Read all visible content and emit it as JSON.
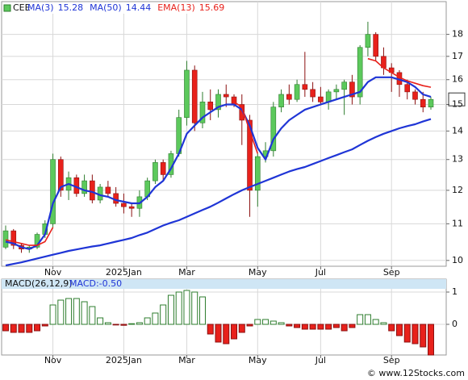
{
  "chart_data": [
    {
      "type": "candlestick",
      "title": "CEE",
      "log_scale": true,
      "grid": true,
      "ylim": [
        9.85,
        19.6
      ],
      "yticks": [
        10,
        11,
        12,
        13,
        14,
        15,
        16,
        17,
        18
      ],
      "up_color": "#5cc95c",
      "down_color": "#e8211b",
      "categories": [
        null,
        null,
        null,
        null,
        null,
        null,
        "Nov",
        null,
        null,
        null,
        null,
        null,
        null,
        null,
        null,
        "2025Jan",
        null,
        null,
        null,
        null,
        null,
        null,
        null,
        "Mar",
        null,
        null,
        null,
        null,
        null,
        null,
        null,
        null,
        "May",
        null,
        null,
        null,
        null,
        null,
        null,
        null,
        "Jul",
        null,
        null,
        null,
        null,
        null,
        null,
        null,
        null,
        "Sep",
        null,
        null,
        null,
        null,
        null
      ],
      "open": [
        10.35,
        10.8,
        10.4,
        10.3,
        10.35,
        10.7,
        11.0,
        13.0,
        12.0,
        12.4,
        11.9,
        12.3,
        11.7,
        12.1,
        11.9,
        11.6,
        11.5,
        11.45,
        11.8,
        12.3,
        12.9,
        12.5,
        13.2,
        14.5,
        16.4,
        14.3,
        15.1,
        14.8,
        15.4,
        15.3,
        15.0,
        14.4,
        12.0,
        13.1,
        13.3,
        14.9,
        15.4,
        15.2,
        15.8,
        15.6,
        15.3,
        15.1,
        15.5,
        15.6,
        15.9,
        15.3,
        17.4,
        18.0,
        17.0,
        16.5,
        16.3,
        15.8,
        15.5,
        15.2,
        14.9
      ],
      "high": [
        10.95,
        10.85,
        10.45,
        10.4,
        10.75,
        11.1,
        13.2,
        13.1,
        12.6,
        12.5,
        12.5,
        12.5,
        12.2,
        12.3,
        12.1,
        11.9,
        11.6,
        12.0,
        12.4,
        13.0,
        13.0,
        13.3,
        14.8,
        16.8,
        16.6,
        15.5,
        15.6,
        15.6,
        15.8,
        15.4,
        15.4,
        14.6,
        13.2,
        13.6,
        15.1,
        15.6,
        15.8,
        16.0,
        17.2,
        15.9,
        15.7,
        15.6,
        15.8,
        16.0,
        16.2,
        17.5,
        18.6,
        18.1,
        17.4,
        16.7,
        16.4,
        16.0,
        15.6,
        15.5,
        15.3
      ],
      "low": [
        10.3,
        10.3,
        10.2,
        10.2,
        10.3,
        10.6,
        10.9,
        11.8,
        11.7,
        11.8,
        11.8,
        11.6,
        11.6,
        11.8,
        11.5,
        11.3,
        11.2,
        11.2,
        11.7,
        12.2,
        12.3,
        12.4,
        13.1,
        14.2,
        14.0,
        14.1,
        14.4,
        14.5,
        14.9,
        14.9,
        13.5,
        11.2,
        11.5,
        12.9,
        13.1,
        14.7,
        15.0,
        15.1,
        15.3,
        15.1,
        15.0,
        14.8,
        15.2,
        14.6,
        15.0,
        15.0,
        17.0,
        16.8,
        16.2,
        15.5,
        15.3,
        15.2,
        15.0,
        14.7,
        14.8
      ],
      "close": [
        10.8,
        10.4,
        10.3,
        10.35,
        10.7,
        11.0,
        13.0,
        12.0,
        12.4,
        11.9,
        12.3,
        11.7,
        12.1,
        11.9,
        11.6,
        11.5,
        11.45,
        11.8,
        12.3,
        12.9,
        12.5,
        13.2,
        14.5,
        16.4,
        14.3,
        15.1,
        14.8,
        15.4,
        15.3,
        15.0,
        14.4,
        12.0,
        13.1,
        13.3,
        14.9,
        15.4,
        15.2,
        15.8,
        15.6,
        15.3,
        15.1,
        15.5,
        15.6,
        15.9,
        15.3,
        17.4,
        18.0,
        17.0,
        16.5,
        16.3,
        15.8,
        15.5,
        15.2,
        14.9,
        15.2
      ],
      "series": [
        {
          "name": "MA(3)",
          "color": "#1f35d6",
          "last": 15.28,
          "values": [
            10.5,
            10.45,
            10.35,
            10.3,
            10.4,
            10.7,
            11.6,
            12.1,
            12.2,
            12.1,
            12.0,
            11.95,
            11.85,
            11.8,
            11.7,
            11.65,
            11.6,
            11.6,
            11.8,
            12.1,
            12.3,
            12.7,
            13.2,
            13.9,
            14.2,
            14.5,
            14.7,
            14.9,
            15.0,
            15.0,
            14.8,
            14.2,
            13.4,
            13.0,
            13.7,
            14.1,
            14.4,
            14.6,
            14.8,
            14.9,
            15.0,
            15.1,
            15.2,
            15.3,
            15.4,
            15.5,
            15.9,
            16.1,
            16.1,
            16.1,
            16.0,
            15.9,
            15.7,
            15.4,
            15.3
          ]
        },
        {
          "name": "MA(50)",
          "color": "#1f35d6",
          "last": 14.44,
          "values": [
            9.87,
            9.91,
            9.95,
            10.0,
            10.05,
            10.1,
            10.15,
            10.2,
            10.25,
            10.29,
            10.33,
            10.37,
            10.4,
            10.45,
            10.5,
            10.55,
            10.6,
            10.68,
            10.75,
            10.85,
            10.95,
            11.03,
            11.1,
            11.2,
            11.3,
            11.4,
            11.5,
            11.62,
            11.75,
            11.88,
            12.0,
            12.1,
            12.2,
            12.3,
            12.4,
            12.5,
            12.6,
            12.68,
            12.75,
            12.85,
            12.95,
            13.05,
            13.15,
            13.25,
            13.35,
            13.5,
            13.65,
            13.78,
            13.9,
            14.0,
            14.1,
            14.18,
            14.25,
            14.35,
            14.44
          ]
        },
        {
          "name": "EMA(13)",
          "color": "#e8211b",
          "last": 15.69,
          "values": [
            10.55,
            10.5,
            10.45,
            10.4,
            10.4,
            10.5,
            10.9,
            null,
            null,
            null,
            null,
            null,
            null,
            null,
            null,
            null,
            null,
            null,
            null,
            null,
            null,
            null,
            null,
            null,
            null,
            null,
            null,
            null,
            null,
            15.1,
            14.9,
            14.0,
            13.2,
            null,
            null,
            null,
            null,
            null,
            null,
            null,
            null,
            null,
            null,
            null,
            null,
            null,
            16.9,
            16.8,
            16.5,
            16.3,
            16.1,
            15.95,
            15.85,
            15.75,
            15.69
          ]
        }
      ]
    },
    {
      "type": "bar",
      "title": "MACD(26,12,9)",
      "subtitle": "MACD:-0.50",
      "grid": true,
      "ylim": [
        -0.95,
        1.4
      ],
      "yticks": [
        1,
        0
      ],
      "up_color": "#2e7d2e",
      "down_color": "#e8211b",
      "categories": [
        null,
        null,
        null,
        null,
        null,
        null,
        "Nov",
        null,
        null,
        null,
        null,
        null,
        null,
        null,
        null,
        "2025Jan",
        null,
        null,
        null,
        null,
        null,
        null,
        null,
        "Mar",
        null,
        null,
        null,
        null,
        null,
        null,
        null,
        null,
        "May",
        null,
        null,
        null,
        null,
        null,
        null,
        null,
        "Jul",
        null,
        null,
        null,
        null,
        null,
        null,
        null,
        null,
        "Sep",
        null,
        null,
        null,
        null,
        null
      ],
      "values": [
        -0.2,
        -0.25,
        -0.25,
        -0.25,
        -0.2,
        -0.05,
        0.6,
        0.75,
        0.8,
        0.8,
        0.7,
        0.55,
        0.2,
        0.05,
        -0.02,
        -0.03,
        0.02,
        0.05,
        0.2,
        0.35,
        0.6,
        0.9,
        1.0,
        1.05,
        1.0,
        0.85,
        -0.3,
        -0.55,
        -0.6,
        -0.45,
        -0.25,
        -0.05,
        0.15,
        0.15,
        0.1,
        0.05,
        -0.05,
        -0.1,
        -0.15,
        -0.15,
        -0.15,
        -0.15,
        -0.1,
        -0.2,
        -0.1,
        0.3,
        0.3,
        0.15,
        0.05,
        -0.2,
        -0.35,
        -0.55,
        -0.6,
        -0.7,
        -0.95
      ]
    }
  ],
  "footer": "© www.12Stocks.com"
}
